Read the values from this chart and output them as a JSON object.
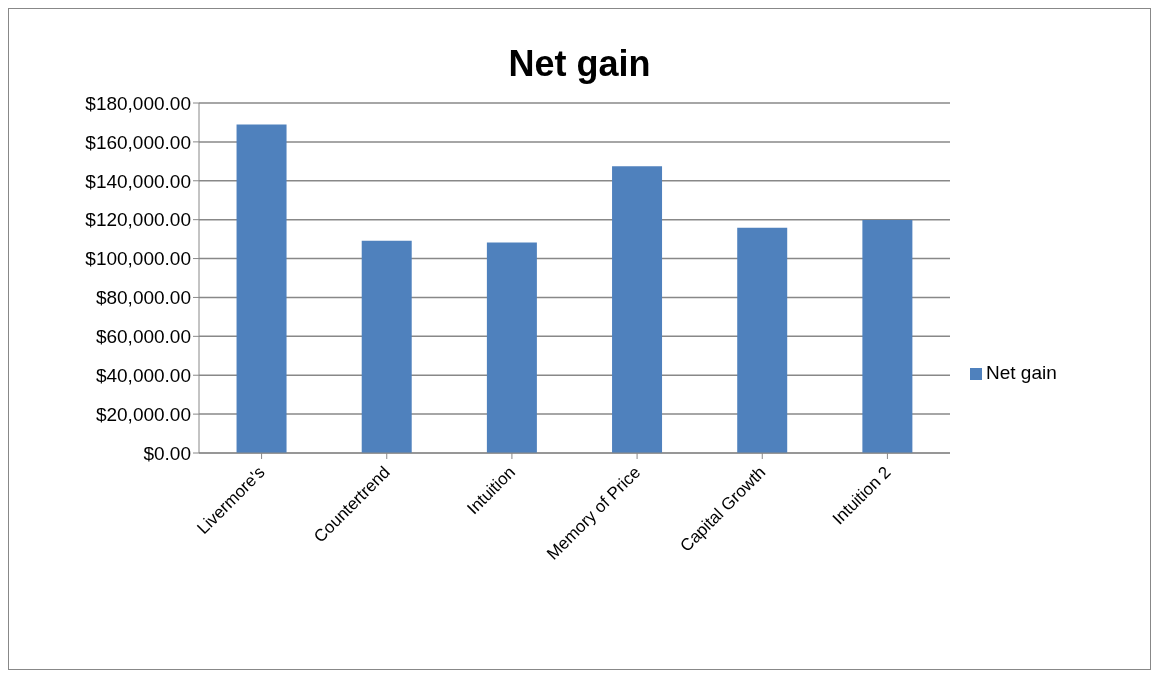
{
  "chart_data": {
    "type": "bar",
    "title": "Net gain",
    "categories": [
      "Livermore's",
      "Countertrend",
      "Intuition",
      "Memory of Price",
      "Capital Growth",
      "Intuition 2"
    ],
    "series": [
      {
        "name": "Net gain",
        "color": "#4f81bd",
        "values": [
          169000,
          109200,
          108200,
          147500,
          115900,
          119800
        ]
      }
    ],
    "ylim": [
      0,
      180000
    ],
    "yticks": [
      {
        "value": 0,
        "label": "$0.00"
      },
      {
        "value": 20000,
        "label": "$20,000.00"
      },
      {
        "value": 40000,
        "label": "$40,000.00"
      },
      {
        "value": 60000,
        "label": "$60,000.00"
      },
      {
        "value": 80000,
        "label": "$80,000.00"
      },
      {
        "value": 100000,
        "label": "$100,000.00"
      },
      {
        "value": 120000,
        "label": "$120,000.00"
      },
      {
        "value": 140000,
        "label": "$140,000.00"
      },
      {
        "value": 160000,
        "label": "$160,000.00"
      },
      {
        "value": 180000,
        "label": "$180,000.00"
      }
    ],
    "grid": "y",
    "legend": "right"
  }
}
